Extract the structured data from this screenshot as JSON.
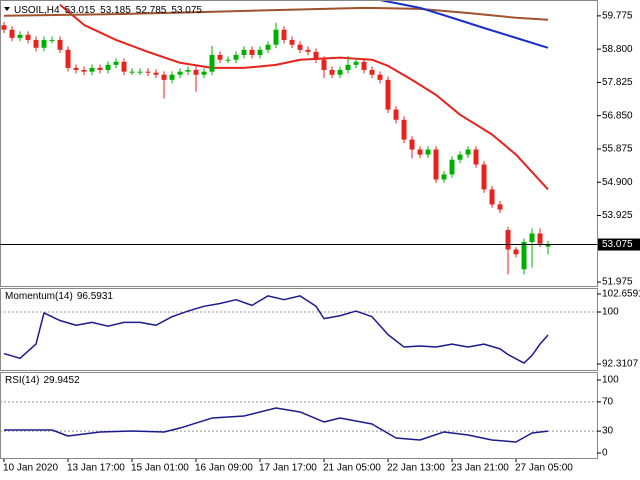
{
  "chart_data": [
    {
      "type": "candlestick",
      "title": "USOIL,H4",
      "categories": [
        "10 Jan 2020",
        null,
        null,
        null,
        null,
        null,
        null,
        null,
        "13 Jan 17:00",
        null,
        null,
        null,
        null,
        null,
        null,
        null,
        "15 Jan 01:00",
        null,
        null,
        null,
        null,
        null,
        null,
        null,
        "16 Jan 09:00",
        null,
        null,
        null,
        null,
        null,
        null,
        null,
        "17 Jan 17:00",
        null,
        null,
        null,
        null,
        null,
        null,
        null,
        "21 Jan 05:00",
        null,
        null,
        null,
        null,
        null,
        null,
        null,
        "22 Jan 13:00",
        null,
        null,
        null,
        null,
        null,
        null,
        null,
        "23 Jan 21:00",
        null,
        null,
        null,
        null,
        null,
        null,
        null,
        "27 Jan 05:00",
        null,
        null,
        null,
        null
      ],
      "open": [
        59.5,
        59.37,
        59.13,
        59.22,
        59.07,
        58.84,
        59.07,
        59.07,
        58.78,
        58.25,
        58.19,
        58.14,
        58.25,
        58.19,
        58.34,
        58.43,
        58.14,
        58.14,
        58.14,
        58.11,
        58.05,
        57.9,
        58.05,
        58.14,
        58.19,
        58.05,
        58.14,
        58.63,
        58.49,
        58.49,
        58.63,
        58.78,
        58.63,
        58.78,
        58.93,
        59.37,
        59.07,
        58.93,
        58.78,
        58.72,
        58.49,
        58.19,
        58.05,
        58.19,
        58.34,
        58.43,
        58.19,
        58.05,
        57.9,
        57.03,
        56.73,
        56.15,
        55.86,
        55.71,
        55.86,
        54.98,
        55.13,
        55.56,
        55.71,
        55.86,
        55.42,
        54.69,
        54.25,
        53.5,
        52.93,
        52.35,
        53.15,
        53.4,
        53.015
      ],
      "high": [
        59.6,
        59.47,
        59.32,
        59.32,
        59.17,
        59.17,
        59.17,
        59.17,
        58.88,
        58.35,
        58.29,
        58.35,
        58.35,
        58.44,
        58.53,
        58.53,
        58.24,
        58.24,
        58.24,
        58.21,
        58.15,
        58.15,
        58.24,
        58.29,
        58.29,
        58.24,
        58.9,
        58.73,
        58.59,
        58.73,
        58.88,
        58.88,
        58.88,
        59.03,
        59.57,
        59.47,
        59.17,
        59.03,
        58.88,
        58.82,
        58.59,
        58.29,
        58.29,
        58.6,
        58.53,
        58.53,
        58.29,
        58.15,
        58.0,
        57.13,
        56.83,
        56.25,
        55.96,
        55.96,
        55.96,
        55.23,
        55.66,
        55.81,
        55.96,
        55.96,
        55.52,
        54.79,
        54.35,
        53.6,
        53.0,
        53.25,
        53.55,
        53.55,
        53.185
      ],
      "low": [
        59.27,
        59.03,
        59.03,
        58.97,
        58.74,
        58.74,
        58.97,
        58.68,
        58.15,
        58.09,
        58.04,
        58.04,
        58.09,
        58.09,
        58.24,
        58.04,
        58.04,
        58.04,
        58.01,
        57.95,
        57.35,
        57.8,
        57.95,
        58.04,
        57.55,
        57.95,
        58.04,
        58.39,
        58.39,
        58.39,
        58.53,
        58.53,
        58.53,
        58.68,
        58.83,
        58.97,
        58.83,
        58.68,
        58.62,
        58.39,
        57.95,
        57.95,
        57.95,
        58.09,
        58.24,
        58.09,
        57.95,
        57.8,
        56.93,
        56.63,
        56.05,
        55.6,
        55.61,
        55.61,
        54.88,
        54.88,
        55.03,
        55.46,
        55.61,
        55.32,
        54.59,
        54.15,
        54.0,
        52.2,
        52.7,
        52.2,
        52.4,
        53.0,
        52.785
      ],
      "close": [
        59.37,
        59.13,
        59.22,
        59.07,
        58.84,
        59.07,
        59.07,
        58.78,
        58.25,
        58.19,
        58.14,
        58.25,
        58.19,
        58.34,
        58.43,
        58.14,
        58.14,
        58.14,
        58.11,
        58.05,
        57.9,
        58.05,
        58.14,
        58.19,
        58.05,
        58.14,
        58.63,
        58.49,
        58.49,
        58.63,
        58.78,
        58.63,
        58.78,
        58.93,
        59.37,
        59.07,
        58.93,
        58.78,
        58.72,
        58.49,
        58.19,
        58.05,
        58.19,
        58.34,
        58.43,
        58.19,
        58.05,
        57.9,
        57.03,
        56.73,
        56.15,
        55.86,
        55.71,
        55.86,
        54.98,
        55.13,
        55.56,
        55.71,
        55.86,
        55.42,
        54.69,
        54.25,
        54.1,
        52.93,
        52.79,
        53.15,
        53.4,
        53.1,
        53.075
      ],
      "up_color": "#00b000",
      "down_color": "#e8231d",
      "series": [
        {
          "color": "#e8231d",
          "x": [
            7,
            10,
            14,
            18,
            22,
            26,
            30,
            34,
            37,
            42,
            46,
            48,
            51,
            54,
            57,
            61,
            64,
            68
          ],
          "values": [
            60.1,
            59.51,
            59.07,
            58.72,
            58.4,
            58.25,
            58.25,
            58.34,
            58.49,
            58.55,
            58.49,
            58.31,
            57.9,
            57.46,
            56.88,
            56.3,
            55.71,
            54.69
          ]
        },
        {
          "color": "#a0522d",
          "x": [
            0,
            15,
            25,
            35,
            45,
            52,
            58,
            64,
            68
          ],
          "values": [
            59.78,
            59.83,
            59.89,
            59.95,
            60.01,
            59.98,
            59.86,
            59.72,
            59.66
          ]
        },
        {
          "color": "#1a2fc9",
          "x": [
            47,
            52,
            56,
            60,
            64,
            68
          ],
          "values": [
            60.24,
            60.01,
            59.72,
            59.42,
            59.13,
            58.84
          ]
        }
      ],
      "ylim": [
        51.86,
        60.24
      ],
      "yticks": [
        59.775,
        {
          "value": 58.8,
          "label": "58.800"
        },
        57.825,
        {
          "value": 56.85,
          "label": "56.850"
        },
        55.875,
        {
          "value": 54.9,
          "label": "54.900"
        },
        53.925,
        51.975
      ]
    },
    {
      "type": "line",
      "title": "Momentum(14)",
      "series": [
        {
          "color": "#1b1b8f",
          "x": [
            0,
            2,
            4,
            5,
            7,
            9,
            11,
            13,
            15,
            17,
            19,
            21,
            23,
            25,
            27,
            29,
            31,
            33,
            35,
            37,
            39,
            40,
            42,
            44,
            46,
            48,
            50,
            52,
            54,
            56,
            58,
            60,
            62,
            63,
            65,
            66,
            67,
            68
          ],
          "values": [
            93.85,
            93.15,
            95.25,
            99.86,
            98.74,
            98.04,
            98.46,
            97.9,
            98.46,
            98.46,
            98.04,
            99.3,
            100.14,
            100.84,
            101.26,
            101.82,
            100.98,
            102.38,
            101.82,
            102.38,
            100.84,
            99.02,
            99.44,
            100.14,
            99.3,
            96.65,
            94.83,
            94.97,
            94.83,
            95.25,
            94.83,
            95.25,
            94.55,
            93.71,
            92.45,
            93.57,
            95.25,
            96.5931
          ]
        }
      ],
      "ylim": [
        92.3107,
        102.6591
      ],
      "yticks": [
        102.6591,
        100,
        92.3107
      ],
      "levels": [
        100
      ]
    },
    {
      "type": "line",
      "title": "RSI(14)",
      "series": [
        {
          "color": "#1b1b8f",
          "x": [
            0,
            6,
            8,
            12,
            16,
            20,
            22,
            26,
            30,
            34,
            37,
            40,
            42,
            46,
            49,
            52,
            55,
            58,
            61,
            64,
            66,
            68
          ],
          "values": [
            31.5,
            31.5,
            23.3,
            28.8,
            30.1,
            28.8,
            34.2,
            47.9,
            50.7,
            61.6,
            56.2,
            42.5,
            47.9,
            39.7,
            20.5,
            17.8,
            28.8,
            24.7,
            17.8,
            15.1,
            27.4,
            29.9452
          ]
        }
      ],
      "ylim": [
        0,
        100
      ],
      "yticks": [
        100,
        70,
        30,
        0
      ],
      "levels": [
        70,
        30
      ]
    }
  ]
}
